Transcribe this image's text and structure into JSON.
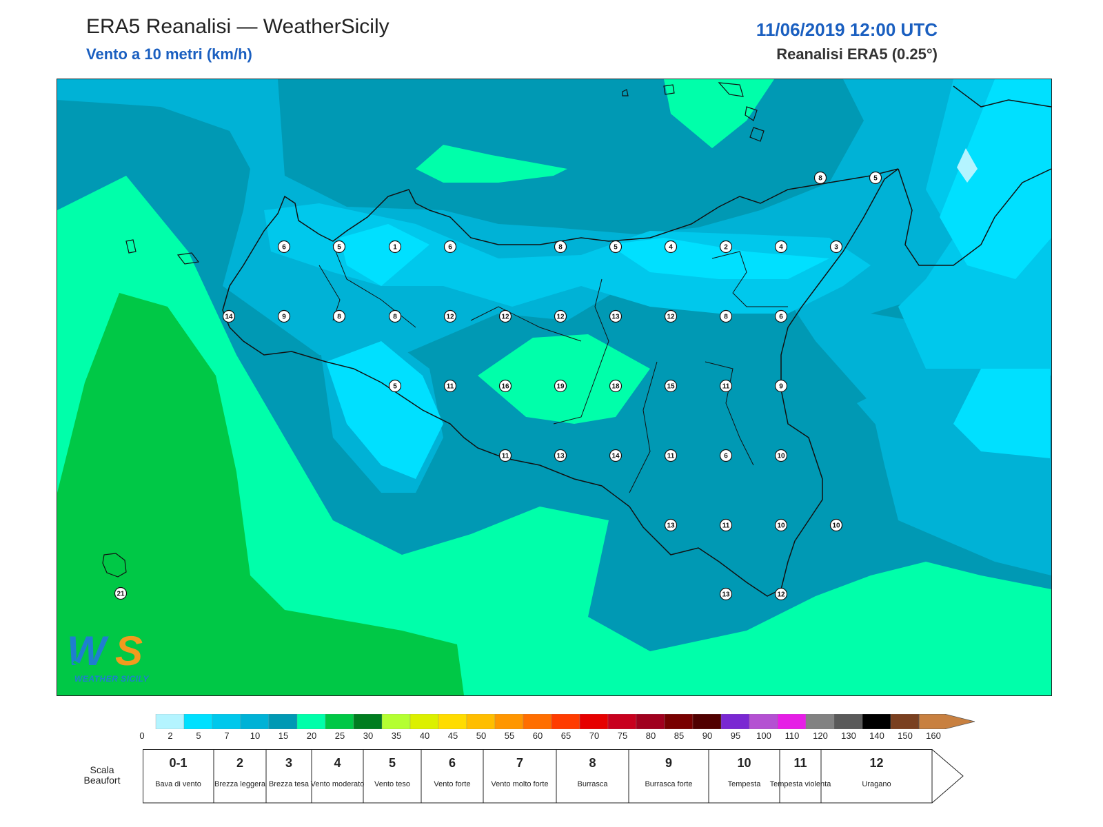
{
  "header": {
    "title": "ERA5 Reanalisi — WeatherSicily",
    "subtitle": "Vento a 10 metri (km/h)",
    "datetime": "11/06/2019 12:00 UTC",
    "model": "Reanalisi ERA5 (0.25°)"
  },
  "map": {
    "region": "Sicily",
    "field_colors": {
      "0-2": "#b4f4ff",
      "2-5": "#00e0ff",
      "5-7": "#00c8ec",
      "7-10": "#00b2d6",
      "10-15": "#0099b4",
      "15-20": "#00ffaa",
      "20-25": "#00c846"
    },
    "wind_points": [
      {
        "value": "8"
      },
      {
        "value": "5"
      },
      {
        "value": "6"
      },
      {
        "value": "5"
      },
      {
        "value": "1"
      },
      {
        "value": "6"
      },
      {
        "value": "8"
      },
      {
        "value": "5"
      },
      {
        "value": "4"
      },
      {
        "value": "2"
      },
      {
        "value": "4"
      },
      {
        "value": "3"
      },
      {
        "value": "14"
      },
      {
        "value": "9"
      },
      {
        "value": "8"
      },
      {
        "value": "8"
      },
      {
        "value": "12"
      },
      {
        "value": "12"
      },
      {
        "value": "12"
      },
      {
        "value": "13"
      },
      {
        "value": "12"
      },
      {
        "value": "8"
      },
      {
        "value": "6"
      },
      {
        "value": "5"
      },
      {
        "value": "11"
      },
      {
        "value": "16"
      },
      {
        "value": "19"
      },
      {
        "value": "18"
      },
      {
        "value": "15"
      },
      {
        "value": "11"
      },
      {
        "value": "9"
      },
      {
        "value": "11"
      },
      {
        "value": "13"
      },
      {
        "value": "14"
      },
      {
        "value": "11"
      },
      {
        "value": "6"
      },
      {
        "value": "10"
      },
      {
        "value": "13"
      },
      {
        "value": "11"
      },
      {
        "value": "10"
      },
      {
        "value": "10"
      },
      {
        "value": "13"
      },
      {
        "value": "12"
      },
      {
        "value": "21"
      }
    ]
  },
  "logo": {
    "text": "WEATHER SICILY",
    "colors": [
      "#1f7ed0",
      "#f39a1e",
      "#00c846"
    ]
  },
  "colorbar": {
    "colors": [
      "#b4f4ff",
      "#00e0ff",
      "#00c8ec",
      "#00b2d6",
      "#0099b4",
      "#00ffaa",
      "#00c846",
      "#007d20",
      "#b4ff32",
      "#dcf000",
      "#ffdc00",
      "#ffbe00",
      "#ff9600",
      "#ff6e00",
      "#ff3c00",
      "#e60000",
      "#c8001e",
      "#a0001e",
      "#780000",
      "#500000",
      "#7a28d2",
      "#b450d2",
      "#e61ee6",
      "#828282",
      "#5a5a5a",
      "#000000",
      "#7a4020",
      "#c88040"
    ],
    "ticks": [
      "0",
      "2",
      "5",
      "7",
      "10",
      "15",
      "20",
      "25",
      "30",
      "35",
      "40",
      "45",
      "50",
      "55",
      "60",
      "65",
      "70",
      "75",
      "80",
      "85",
      "90",
      "95",
      "100",
      "110",
      "120",
      "130",
      "140",
      "150",
      "160"
    ]
  },
  "beaufort": {
    "label": "Scala Beaufort",
    "classes": [
      {
        "num": "0-1",
        "desc": "Bava di vento"
      },
      {
        "num": "2",
        "desc": "Brezza leggera"
      },
      {
        "num": "3",
        "desc": "Brezza tesa"
      },
      {
        "num": "4",
        "desc": "Vento moderato"
      },
      {
        "num": "5",
        "desc": "Vento teso"
      },
      {
        "num": "6",
        "desc": "Vento forte"
      },
      {
        "num": "7",
        "desc": "Vento molto forte"
      },
      {
        "num": "8",
        "desc": "Burrasca"
      },
      {
        "num": "9",
        "desc": "Burrasca forte"
      },
      {
        "num": "10",
        "desc": "Tempesta"
      },
      {
        "num": "11",
        "desc": "Tempesta violenta"
      },
      {
        "num": "12",
        "desc": "Uragano"
      }
    ]
  }
}
